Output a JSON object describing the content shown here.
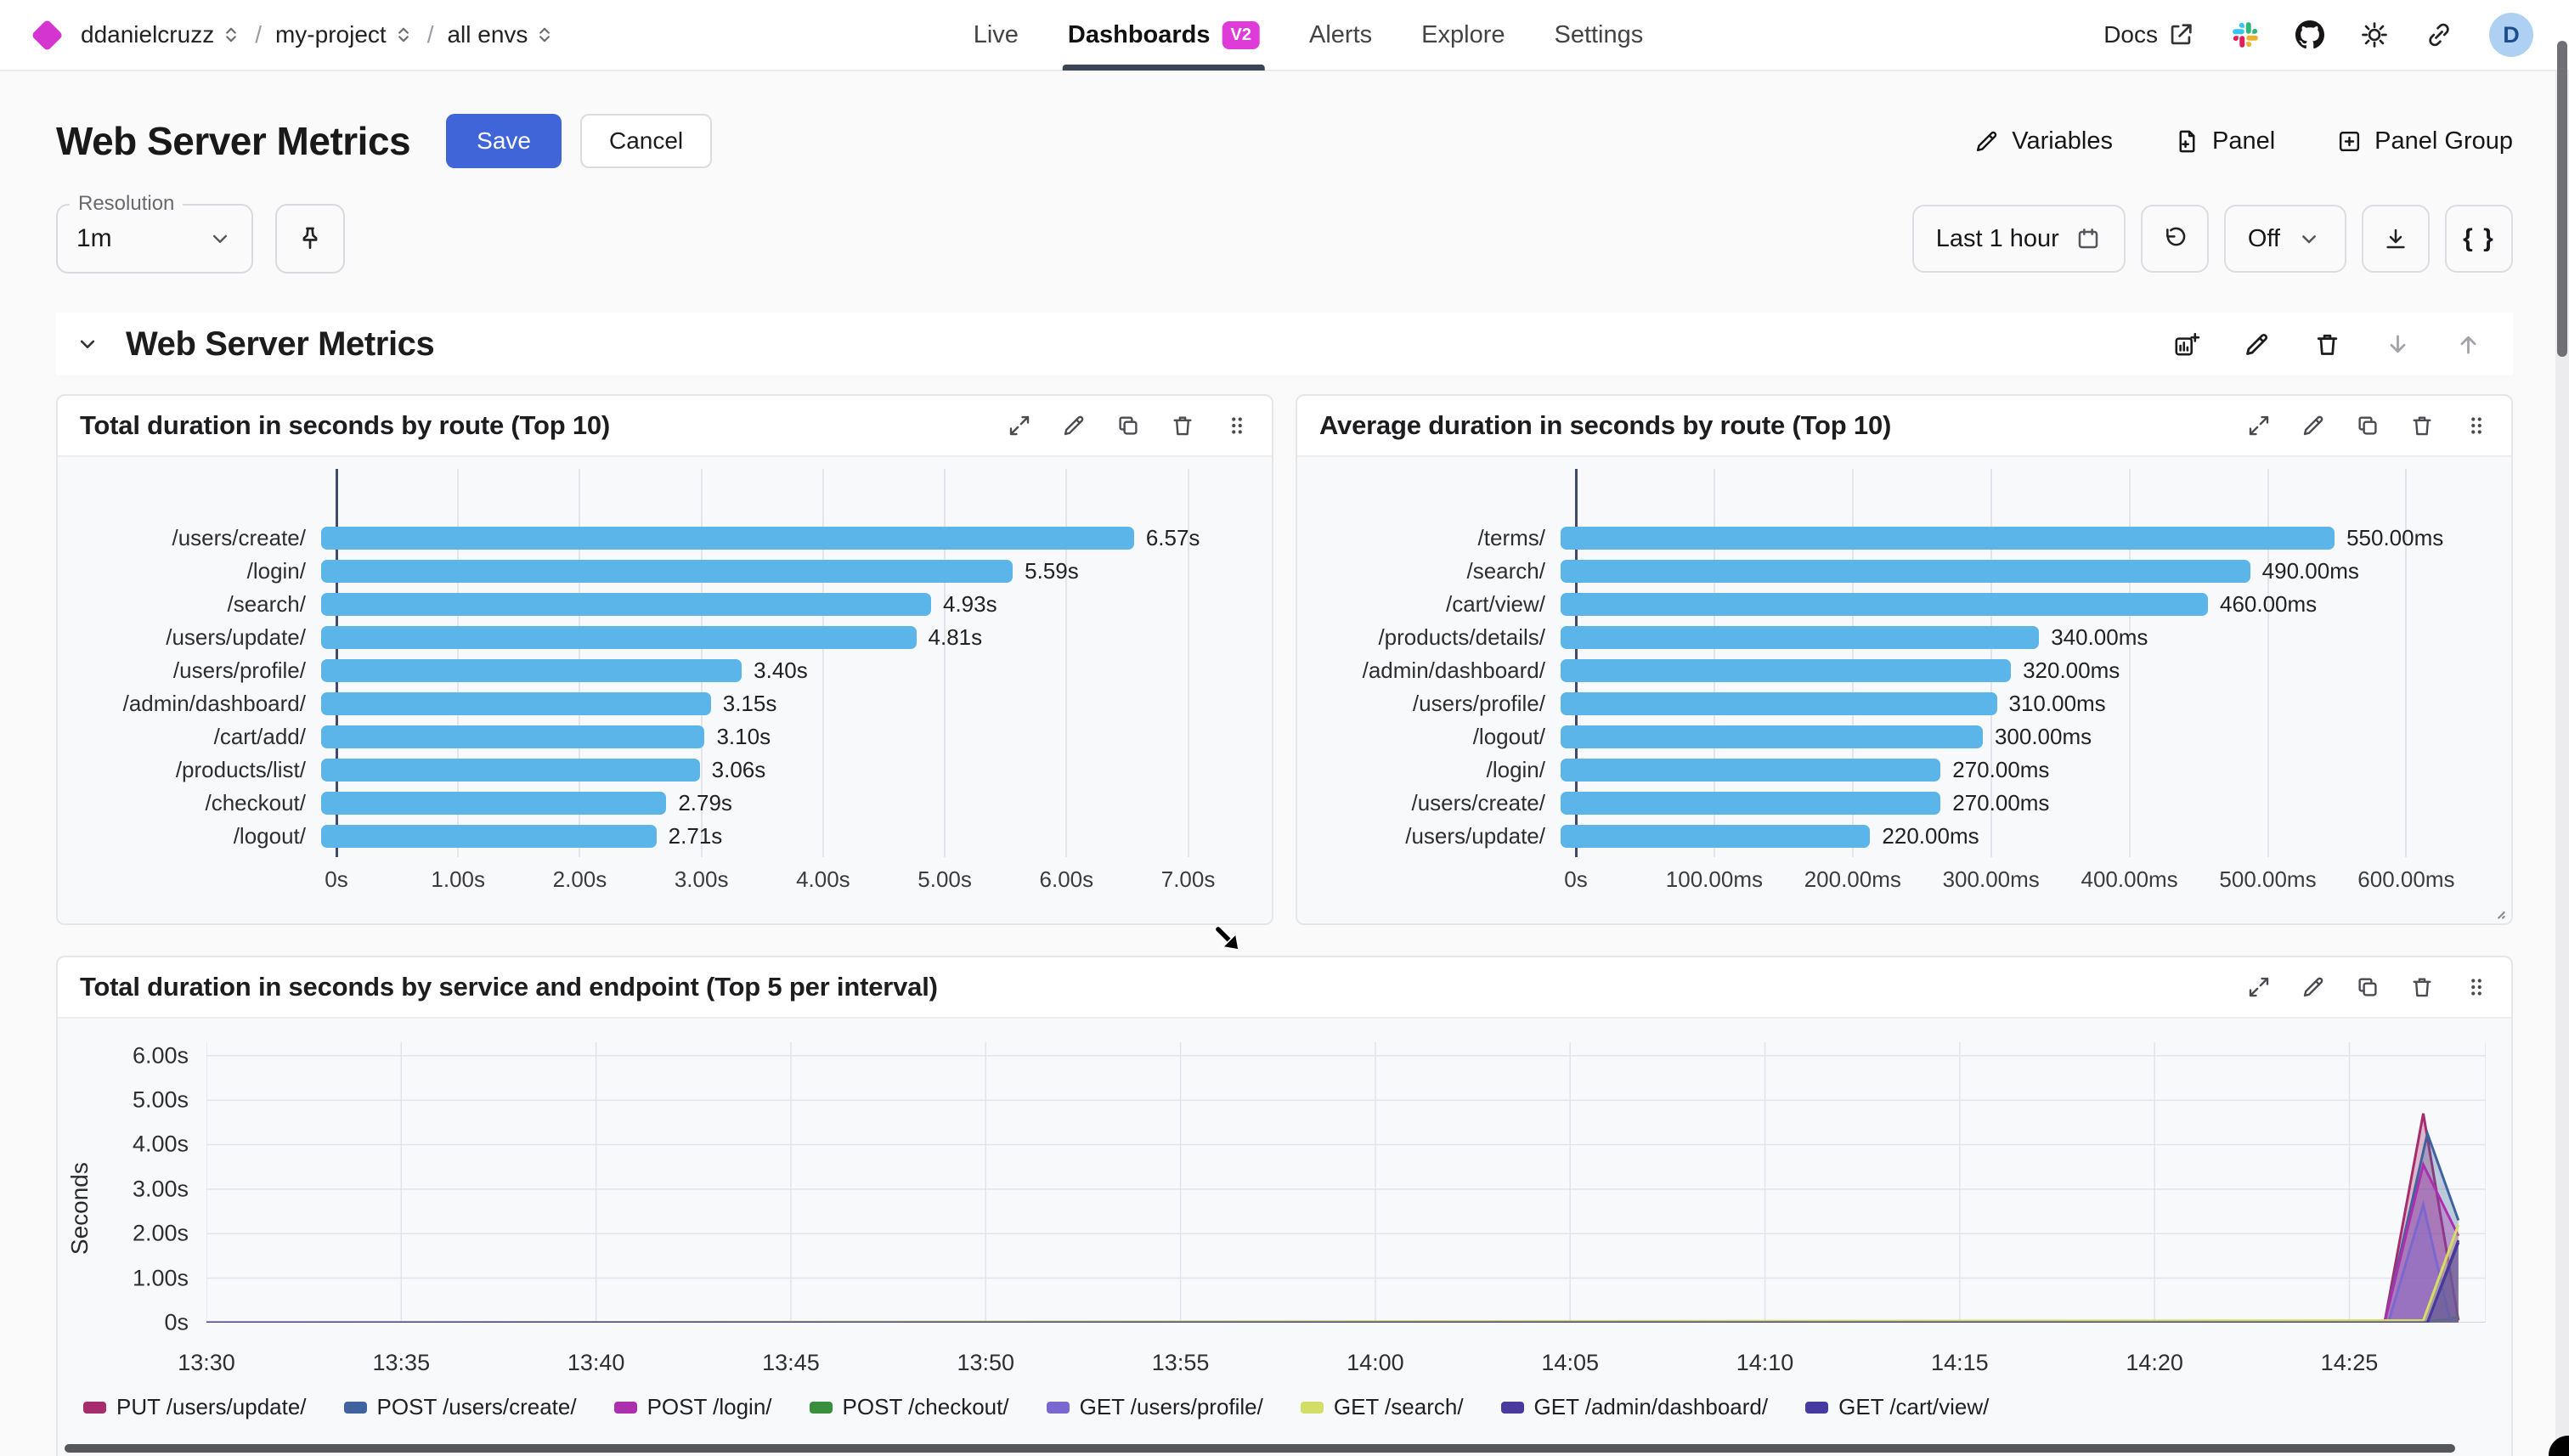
{
  "nav": {
    "breadcrumb": [
      {
        "label": "ddanielcruzz"
      },
      {
        "label": "my-project"
      },
      {
        "label": "all envs"
      }
    ],
    "separator": "/",
    "tabs": [
      {
        "label": "Live"
      },
      {
        "label": "Dashboards",
        "badge": "V2",
        "active": true
      },
      {
        "label": "Alerts"
      },
      {
        "label": "Explore"
      },
      {
        "label": "Settings"
      }
    ],
    "docs_label": "Docs",
    "avatar_initial": "D",
    "icons": [
      "logo-diamond",
      "external-link-icon",
      "slack-icon",
      "github-icon",
      "sun-icon",
      "link-icon"
    ]
  },
  "header": {
    "title": "Web Server Metrics",
    "save_label": "Save",
    "cancel_label": "Cancel",
    "variables_label": "Variables",
    "panel_label": "Panel",
    "panel_group_label": "Panel Group"
  },
  "toolbar": {
    "resolution_label": "Resolution",
    "resolution_value": "1m",
    "time_range": "Last 1 hour",
    "refresh_interval": "Off",
    "braces_label": "{ }",
    "icons": [
      "chevron-down-icon",
      "pin-icon",
      "calendar-icon",
      "refresh-icon",
      "download-icon"
    ]
  },
  "section": {
    "title": "Web Server Metrics",
    "icons": [
      "add-panel-icon",
      "edit-icon",
      "delete-icon",
      "move-down-icon",
      "move-up-icon"
    ]
  },
  "panel_action_icons": [
    "expand-icon",
    "edit-icon",
    "copy-icon",
    "delete-icon",
    "drag-handle-icon"
  ],
  "colors": {
    "accent_blue": "#4065d9",
    "badge_magenta": "#df3bd8",
    "bar_blue": "#5bb5e8",
    "axis_dark": "#3f4a70",
    "active_tab_underline": "#3c4555"
  },
  "chart_data": [
    {
      "type": "bar",
      "orientation": "horizontal",
      "title": "Total duration in seconds by route (Top 10)",
      "categories": [
        "/users/create/",
        "/login/",
        "/search/",
        "/users/update/",
        "/users/profile/",
        "/admin/dashboard/",
        "/cart/add/",
        "/products/list/",
        "/checkout/",
        "/logout/"
      ],
      "values": [
        6.57,
        5.59,
        4.93,
        4.81,
        3.4,
        3.15,
        3.1,
        3.06,
        2.79,
        2.71
      ],
      "value_labels": [
        "6.57s",
        "5.59s",
        "4.93s",
        "4.81s",
        "3.40s",
        "3.15s",
        "3.10s",
        "3.06s",
        "2.79s",
        "2.71s"
      ],
      "ticks": [
        {
          "v": 0,
          "label": "0s"
        },
        {
          "v": 1,
          "label": "1.00s"
        },
        {
          "v": 2,
          "label": "2.00s"
        },
        {
          "v": 3,
          "label": "3.00s"
        },
        {
          "v": 4,
          "label": "4.00s"
        },
        {
          "v": 5,
          "label": "5.00s"
        },
        {
          "v": 6,
          "label": "6.00s"
        },
        {
          "v": 7,
          "label": "7.00s"
        }
      ],
      "axis_max": 7.45,
      "bar_color": "#5bb5e8",
      "grid": true
    },
    {
      "type": "bar",
      "orientation": "horizontal",
      "title": "Average duration in seconds by route (Top 10)",
      "categories": [
        "/terms/",
        "/search/",
        "/cart/view/",
        "/products/details/",
        "/admin/dashboard/",
        "/users/profile/",
        "/logout/",
        "/login/",
        "/users/create/",
        "/users/update/"
      ],
      "values": [
        550,
        490,
        460,
        340,
        320,
        310,
        300,
        270,
        270,
        220
      ],
      "value_labels": [
        "550.00ms",
        "490.00ms",
        "460.00ms",
        "340.00ms",
        "320.00ms",
        "310.00ms",
        "300.00ms",
        "270.00ms",
        "270.00ms",
        "220.00ms"
      ],
      "ticks": [
        {
          "v": 0,
          "label": "0s"
        },
        {
          "v": 100,
          "label": "100.00ms"
        },
        {
          "v": 200,
          "label": "200.00ms"
        },
        {
          "v": 300,
          "label": "300.00ms"
        },
        {
          "v": 400,
          "label": "400.00ms"
        },
        {
          "v": 500,
          "label": "500.00ms"
        },
        {
          "v": 600,
          "label": "600.00ms"
        }
      ],
      "axis_max": 655,
      "bar_color": "#5bb5e8",
      "grid": true
    },
    {
      "type": "area",
      "title": "Total duration in seconds by service and endpoint (Top 5 per interval)",
      "ylabel": "Seconds",
      "x_max": 58.5,
      "y_max": 6.3,
      "y_ticks": [
        {
          "v": 0,
          "label": "0s"
        },
        {
          "v": 1,
          "label": "1.00s"
        },
        {
          "v": 2,
          "label": "2.00s"
        },
        {
          "v": 3,
          "label": "3.00s"
        },
        {
          "v": 4,
          "label": "4.00s"
        },
        {
          "v": 5,
          "label": "5.00s"
        },
        {
          "v": 6,
          "label": "6.00s"
        }
      ],
      "x_ticks": [
        {
          "m": 0,
          "label": "13:30"
        },
        {
          "m": 5,
          "label": "13:35"
        },
        {
          "m": 10,
          "label": "13:40"
        },
        {
          "m": 15,
          "label": "13:45"
        },
        {
          "m": 20,
          "label": "13:50"
        },
        {
          "m": 25,
          "label": "13:55"
        },
        {
          "m": 30,
          "label": "14:00"
        },
        {
          "m": 35,
          "label": "14:05"
        },
        {
          "m": 40,
          "label": "14:10"
        },
        {
          "m": 45,
          "label": "14:15"
        },
        {
          "m": 50,
          "label": "14:20"
        },
        {
          "m": 55,
          "label": "14:25"
        }
      ],
      "series": [
        {
          "name": "PUT /users/update/",
          "color": "#a62c6d",
          "points": [
            [
              0,
              0
            ],
            [
              55.9,
              0
            ],
            [
              56.9,
              4.7
            ],
            [
              57.8,
              0.05
            ]
          ]
        },
        {
          "name": "POST /users/create/",
          "color": "#3f639e",
          "points": [
            [
              0,
              0
            ],
            [
              55.9,
              0
            ],
            [
              57.0,
              4.25
            ],
            [
              57.8,
              2.3
            ]
          ]
        },
        {
          "name": "POST /login/",
          "color": "#ac2fae",
          "points": [
            [
              0,
              0
            ],
            [
              55.9,
              0
            ],
            [
              56.9,
              3.55
            ],
            [
              57.8,
              1.95
            ]
          ]
        },
        {
          "name": "POST /checkout/",
          "color": "#3a8f3e",
          "points": [
            [
              0,
              0
            ],
            [
              56.9,
              0
            ],
            [
              57.8,
              0.12
            ]
          ]
        },
        {
          "name": "GET /users/profile/",
          "color": "#7a67cf",
          "points": [
            [
              0,
              0
            ],
            [
              56.0,
              0
            ],
            [
              56.9,
              2.65
            ],
            [
              57.6,
              0
            ],
            [
              57.8,
              0
            ]
          ]
        },
        {
          "name": "GET /search/",
          "color": "#d3de67",
          "points": [
            [
              0,
              0
            ],
            [
              56.9,
              0.05
            ],
            [
              57.8,
              2.2
            ]
          ]
        },
        {
          "name": "GET /admin/dashboard/",
          "color": "#4a3a9e",
          "points": [
            [
              0,
              0
            ],
            [
              57.0,
              0
            ],
            [
              57.8,
              1.85
            ]
          ]
        },
        {
          "name": "GET /cart/view/",
          "color": "#463aa0",
          "points": [
            [
              0,
              0
            ],
            [
              57.0,
              0
            ],
            [
              57.8,
              1.8
            ]
          ]
        }
      ],
      "legend_position": "bottom",
      "grid": true
    }
  ]
}
